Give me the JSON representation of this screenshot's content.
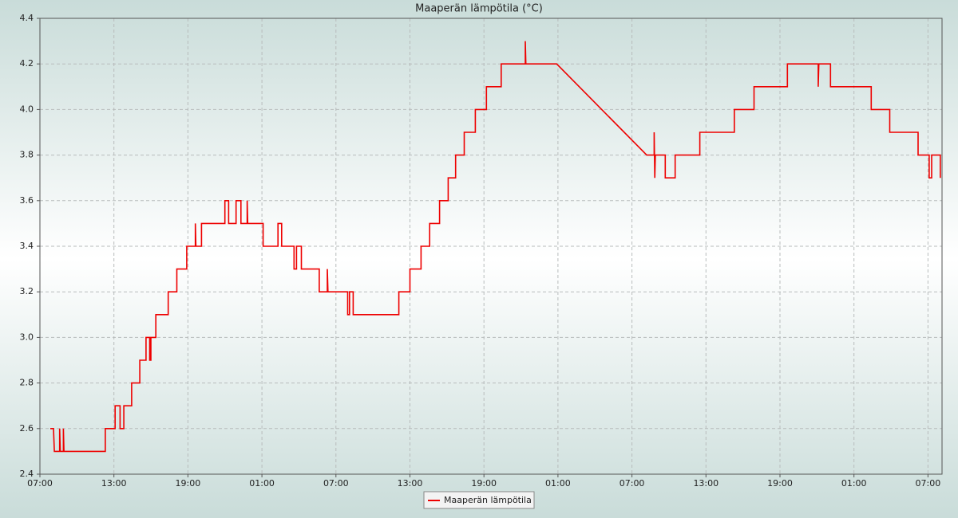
{
  "chart_data": {
    "type": "line",
    "title": "Maaperän lämpötila (°C)",
    "x": [
      0.84,
      1.1,
      1.17,
      1.6,
      1.6,
      1.65,
      1.9,
      1.9,
      1.95,
      5.3,
      5.3,
      6.1,
      6.1,
      6.5,
      6.5,
      6.8,
      6.8,
      7.44,
      7.44,
      8.1,
      8.1,
      8.6,
      8.6,
      8.9,
      8.9,
      9.0,
      9.0,
      9.4,
      9.4,
      10.4,
      10.4,
      11.1,
      11.1,
      11.9,
      11.9,
      12.6,
      12.6,
      12.65,
      13.1,
      13.1,
      15.0,
      15.0,
      15.3,
      15.3,
      15.9,
      15.9,
      16.3,
      16.3,
      16.8,
      16.8,
      16.85,
      18.1,
      18.1,
      19.3,
      19.3,
      19.6,
      19.6,
      20.6,
      20.6,
      20.8,
      20.8,
      21.2,
      21.2,
      22.65,
      22.65,
      23.3,
      23.3,
      23.35,
      24.95,
      24.95,
      25.1,
      25.1,
      25.4,
      25.4,
      29.1,
      29.1,
      30.0,
      30.0,
      30.9,
      30.9,
      31.6,
      31.6,
      32.4,
      32.4,
      33.1,
      33.1,
      33.7,
      33.7,
      34.4,
      34.4,
      35.3,
      35.3,
      36.2,
      36.2,
      37.4,
      37.4,
      39.35,
      39.35,
      39.4,
      41.9,
      49.2,
      49.8,
      49.8,
      49.85,
      49.9,
      50.7,
      50.7,
      51.5,
      51.5,
      53.5,
      53.5,
      56.3,
      56.3,
      57.9,
      57.9,
      60.6,
      60.6,
      63.1,
      63.1,
      63.15,
      64.1,
      64.1,
      67.4,
      67.4,
      68.9,
      68.9,
      71.2,
      71.2,
      72.1,
      72.1,
      72.3,
      72.3,
      73.0,
      73.0
    ],
    "series": [
      {
        "name": "Maaperän lämpötila",
        "color": "#ee0000",
        "values": [
          2.6,
          2.6,
          2.5,
          2.5,
          2.6,
          2.5,
          2.5,
          2.6,
          2.5,
          2.5,
          2.6,
          2.6,
          2.7,
          2.7,
          2.6,
          2.6,
          2.7,
          2.7,
          2.8,
          2.8,
          2.9,
          2.9,
          3.0,
          3.0,
          2.9,
          2.9,
          3.0,
          3.0,
          3.1,
          3.1,
          3.2,
          3.2,
          3.3,
          3.3,
          3.4,
          3.4,
          3.5,
          3.4,
          3.4,
          3.5,
          3.5,
          3.6,
          3.6,
          3.5,
          3.5,
          3.6,
          3.6,
          3.5,
          3.5,
          3.6,
          3.5,
          3.5,
          3.4,
          3.4,
          3.5,
          3.5,
          3.4,
          3.4,
          3.3,
          3.3,
          3.4,
          3.4,
          3.3,
          3.3,
          3.2,
          3.2,
          3.3,
          3.2,
          3.2,
          3.1,
          3.1,
          3.2,
          3.2,
          3.1,
          3.1,
          3.2,
          3.2,
          3.3,
          3.3,
          3.4,
          3.4,
          3.5,
          3.5,
          3.6,
          3.6,
          3.7,
          3.7,
          3.8,
          3.8,
          3.9,
          3.9,
          4.0,
          4.0,
          4.1,
          4.1,
          4.2,
          4.2,
          4.3,
          4.2,
          4.2,
          3.8,
          3.8,
          3.9,
          3.7,
          3.8,
          3.8,
          3.7,
          3.7,
          3.8,
          3.8,
          3.9,
          3.9,
          4.0,
          4.0,
          4.1,
          4.1,
          4.2,
          4.2,
          4.1,
          4.2,
          4.2,
          4.1,
          4.1,
          4.0,
          4.0,
          3.9,
          3.9,
          3.8,
          3.8,
          3.7,
          3.7,
          3.8,
          3.8,
          3.7
        ]
      }
    ],
    "xlim": [
      0,
      73.14
    ],
    "xticks": [
      {
        "value": 0,
        "label": "07:00"
      },
      {
        "value": 6,
        "label": "13:00"
      },
      {
        "value": 12,
        "label": "19:00"
      },
      {
        "value": 18,
        "label": "01:00"
      },
      {
        "value": 24,
        "label": "07:00"
      },
      {
        "value": 30,
        "label": "13:00"
      },
      {
        "value": 36,
        "label": "19:00"
      },
      {
        "value": 42,
        "label": "01:00"
      },
      {
        "value": 48,
        "label": "07:00"
      },
      {
        "value": 54,
        "label": "13:00"
      },
      {
        "value": 60,
        "label": "19:00"
      },
      {
        "value": 66,
        "label": "01:00"
      },
      {
        "value": 72,
        "label": "07:00"
      }
    ],
    "ylim": [
      2.4,
      4.4
    ],
    "yticks": [
      2.4,
      2.6,
      2.8,
      {
        "value": 3,
        "label": "3.0"
      },
      3.2,
      3.4,
      3.6,
      3.8,
      {
        "value": 4,
        "label": "4.0"
      },
      4.2,
      4.4
    ],
    "grid": true,
    "legend": "bottom"
  }
}
